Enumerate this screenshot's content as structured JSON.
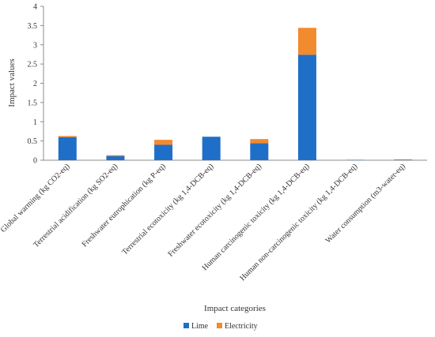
{
  "chart_data": {
    "type": "bar",
    "stacked": true,
    "xlabel": "Impact categories",
    "ylabel": "Impact values",
    "ylim": [
      0,
      4
    ],
    "yticks": [
      "0",
      "0.5",
      "1",
      "1.5",
      "2",
      "2.5",
      "3",
      "3.5",
      "4"
    ],
    "grid": false,
    "legend_position": "bottom",
    "categories": [
      "Global warming (kg CO2-eq)",
      "Terrestrial acidification (kg SO2-eq)",
      "Freshwater eutrophication (kg P-eq)",
      "Terrestrial ecotoxicity (kg 1,4-DCB-eq)",
      "Freshwater ecotoxicity (kg 1,4-DCB-eq)",
      "Human carcinogenic toxicity (kg 1,4-DCB-eq)",
      "Human non-carcinogenic toxicity (kg 1,4-DCB-eq)",
      "Water consumption (m3-water-eq)"
    ],
    "series": [
      {
        "name": "Lime",
        "color": "#1f6fc8",
        "values": [
          0.6,
          0.11,
          0.4,
          0.61,
          0.44,
          2.74,
          0.01,
          0.01
        ]
      },
      {
        "name": "Electricity",
        "color": "#f28a2e",
        "values": [
          0.03,
          0.02,
          0.13,
          0.0,
          0.11,
          0.7,
          0.0,
          0.01
        ]
      }
    ]
  }
}
